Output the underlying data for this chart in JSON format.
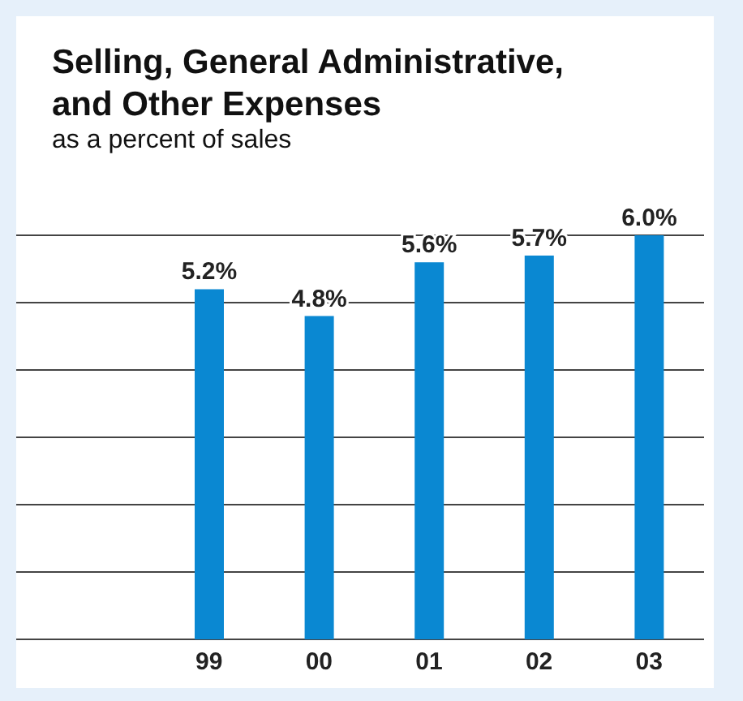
{
  "chart_data": {
    "type": "bar",
    "title": "Selling, General Administrative, and Other Expenses",
    "subtitle": "as a percent of sales",
    "categories": [
      "99",
      "00",
      "01",
      "02",
      "03"
    ],
    "values": [
      5.2,
      4.8,
      5.6,
      5.7,
      6.0
    ],
    "color": "#0a88d2",
    "value_labels": [
      "5.2%",
      "4.8%",
      "5.6%",
      "5.7%",
      "6.0%"
    ],
    "ylim": [
      0,
      6
    ],
    "yticks": [
      {
        "value": 0,
        "label": null
      },
      {
        "value": 1,
        "label": null
      },
      {
        "value": 2,
        "label": null
      },
      {
        "value": 3,
        "label": null
      },
      {
        "value": 4,
        "label": null
      },
      {
        "value": 5,
        "label": null
      },
      {
        "value": 6,
        "label": null
      }
    ],
    "grid": "y",
    "tick_labels": "x",
    "legend": false
  }
}
